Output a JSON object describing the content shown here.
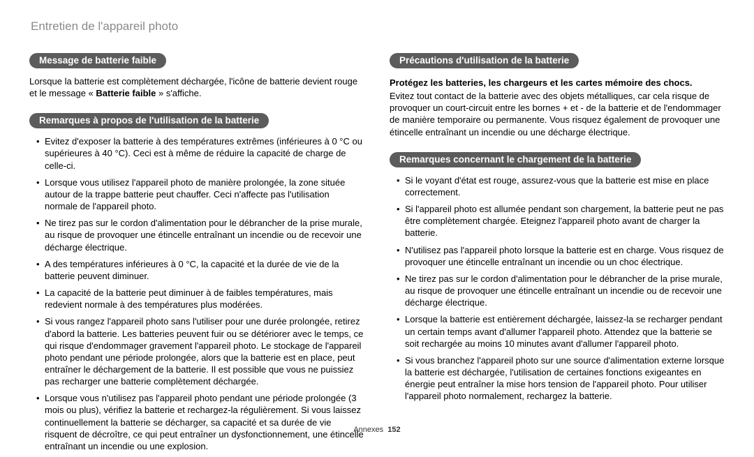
{
  "page_title": "Entretien de l'appareil photo",
  "footer_label": "Annexes",
  "footer_page": "152",
  "left": {
    "section1": {
      "heading": "Message de batterie faible",
      "para_pre": "Lorsque la batterie est complètement déchargée, l'icône de batterie devient rouge et le message « ",
      "para_bold": "Batterie faible",
      "para_post": " » s'affiche."
    },
    "section2": {
      "heading": "Remarques à propos de l'utilisation de la batterie",
      "bullets": [
        "Evitez d'exposer la batterie à des températures extrêmes (inférieures à 0 °C ou supérieures à 40 °C). Ceci est à même de réduire la capacité de charge de celle-ci.",
        "Lorsque vous utilisez l'appareil photo de manière prolongée, la zone située autour de la trappe batterie peut chauffer. Ceci n'affecte pas l'utilisation normale de l'appareil photo.",
        "Ne tirez pas sur le cordon d'alimentation pour le débrancher de la prise murale, au risque de provoquer une étincelle entraînant un incendie ou de recevoir une décharge électrique.",
        "A des températures inférieures à 0 °C, la capacité et la durée de vie de la batterie peuvent diminuer.",
        "La capacité de la batterie peut diminuer à de faibles températures, mais redevient normale à des températures plus modérées.",
        "Si vous rangez l'appareil photo sans l'utiliser pour une durée prolongée, retirez d'abord la batterie. Les batteries peuvent fuir ou se détériorer avec le temps, ce qui risque d'endommager gravement l'appareil photo. Le stockage de l'appareil photo pendant une période prolongée, alors que la batterie est en place, peut entraîner le déchargement de la batterie. Il est possible que vous ne puissiez pas recharger une batterie complètement déchargée.",
        "Lorsque vous n'utilisez pas l'appareil photo pendant une période prolongée (3 mois ou plus), vérifiez la batterie et rechargez-la régulièrement. Si vous laissez continuellement la batterie se décharger, sa capacité et sa durée de vie risquent de décroître, ce qui peut entraîner un dysfonctionnement, une étincelle entraînant un incendie ou une explosion."
      ]
    }
  },
  "right": {
    "section1": {
      "heading": "Précautions d'utilisation de la batterie",
      "bold_para": "Protégez les batteries, les chargeurs et les cartes mémoire des chocs.",
      "para": "Evitez tout contact de la batterie avec des objets métalliques, car cela risque de provoquer un court-circuit entre les bornes + et - de la batterie et de l'endommager de manière temporaire ou permanente. Vous risquez également de provoquer une étincelle entraînant un incendie ou une décharge électrique."
    },
    "section2": {
      "heading": "Remarques concernant le chargement de la batterie",
      "bullets": [
        "Si le voyant d'état est rouge, assurez-vous que la batterie est mise en place correctement.",
        "Si l'appareil photo est allumée pendant son chargement, la batterie peut ne pas être complètement chargée. Eteignez l'appareil photo avant de charger la batterie.",
        "N'utilisez pas l'appareil photo lorsque la batterie est en charge. Vous risquez de provoquer une étincelle entraînant un incendie ou un choc électrique.",
        "Ne tirez pas sur le cordon d'alimentation pour le débrancher de la prise murale, au risque de provoquer une étincelle entraînant un incendie ou de recevoir une décharge électrique.",
        "Lorsque la batterie est entièrement déchargée, laissez-la se recharger pendant un certain temps avant d'allumer l'appareil photo. Attendez que la batterie se soit rechargée au moins 10 minutes avant d'allumer l'appareil photo.",
        "Si vous branchez l'appareil photo sur une source d'alimentation externe lorsque la batterie est déchargée, l'utilisation de certaines fonctions exigeantes en énergie peut entraîner la mise hors tension de l'appareil photo. Pour utiliser l'appareil photo normalement, rechargez la batterie."
      ]
    }
  }
}
